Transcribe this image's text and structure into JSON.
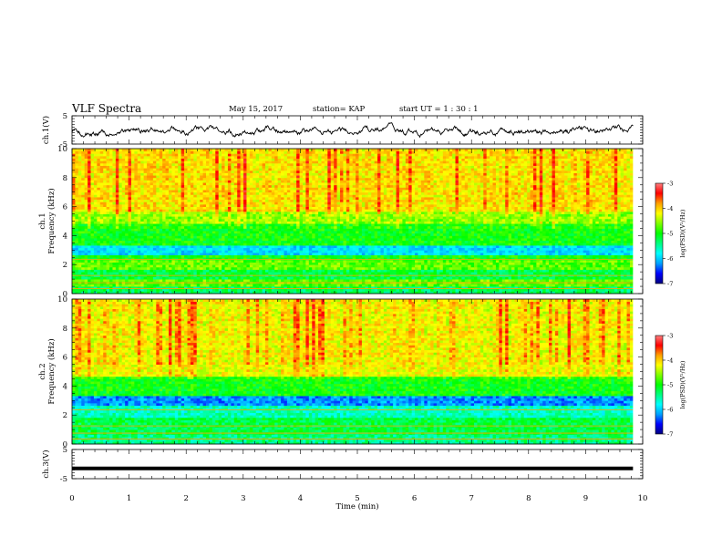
{
  "header": {
    "title": "VLF Spectra",
    "date": "May 15, 2017",
    "station": "station= KAP",
    "start": "start  UT =   1 : 30 : 1"
  },
  "chart_data": [
    {
      "type": "line",
      "panel": "waveform-ch1",
      "ylabel": "ch.1(V)",
      "ylim": [
        -5,
        5
      ],
      "yticks": [
        -5,
        5
      ],
      "x_range_min": [
        0,
        9.83
      ],
      "series_color": "#000000",
      "description_of_signal": "noisy waveform fluctuating roughly between -3 and 2 V around about -0.5 V"
    },
    {
      "type": "heatmap",
      "panel": "spectrogram-ch1",
      "ylabel": "ch.1\nFrequency (kHz)",
      "ylabel_lines": [
        "ch.1",
        "Frequency (kHz)"
      ],
      "ylim": [
        0,
        10
      ],
      "yticks": [
        0,
        2,
        4,
        6,
        8,
        10
      ],
      "x_range_min": [
        0,
        9.83
      ],
      "bands": [
        {
          "from": 0,
          "to": 0.5,
          "level": -5.3
        },
        {
          "from": 0.5,
          "to": 1.0,
          "level": -4.7
        },
        {
          "from": 1.0,
          "to": 1.6,
          "level": -5.2
        },
        {
          "from": 1.6,
          "to": 2.3,
          "level": -4.7
        },
        {
          "from": 2.3,
          "to": 2.7,
          "level": -5.0
        },
        {
          "from": 2.7,
          "to": 3.4,
          "level": -5.9
        },
        {
          "from": 3.4,
          "to": 4.8,
          "level": -5.0
        },
        {
          "from": 4.8,
          "to": 5.6,
          "level": -4.6
        },
        {
          "from": 5.6,
          "to": 10,
          "level": -4.2
        }
      ],
      "colorbar": {
        "label": "log(PSD)(V²/Hz)",
        "range": [
          -7,
          -3
        ],
        "ticks": [
          -3,
          -4,
          -5,
          -6,
          -7
        ]
      }
    },
    {
      "type": "heatmap",
      "panel": "spectrogram-ch2",
      "ylabel_lines": [
        "ch.2",
        "Frequency (kHz)"
      ],
      "ylim": [
        0,
        10
      ],
      "yticks": [
        0,
        2,
        4,
        6,
        8,
        10
      ],
      "x_range_min": [
        0,
        9.83
      ],
      "bands": [
        {
          "from": 0,
          "to": 0.6,
          "level": -5.4
        },
        {
          "from": 0.6,
          "to": 1.8,
          "level": -5.2
        },
        {
          "from": 1.8,
          "to": 2.6,
          "level": -5.6
        },
        {
          "from": 2.6,
          "to": 3.3,
          "level": -6.2
        },
        {
          "from": 3.3,
          "to": 4.6,
          "level": -5.0
        },
        {
          "from": 4.6,
          "to": 10,
          "level": -4.3
        }
      ],
      "colorbar": {
        "label": "log(PSD)(V²/Hz)",
        "range": [
          -7,
          -3
        ],
        "ticks": [
          -3,
          -4,
          -5,
          -6,
          -7
        ]
      }
    },
    {
      "type": "line",
      "panel": "waveform-ch3",
      "ylabel": "ch.3(V)",
      "ylim": [
        -5,
        5
      ],
      "yticks": [
        -5,
        5
      ],
      "x_range_min": [
        0,
        9.83
      ],
      "level_v": -1.5,
      "series_color": "#000000"
    }
  ],
  "xaxis": {
    "label": "Time  (min)",
    "ticks": [
      0,
      1,
      2,
      3,
      4,
      5,
      6,
      7,
      8,
      9,
      10
    ],
    "range": [
      0,
      10
    ]
  },
  "colors": {
    "colormap": [
      "#000080",
      "#0000ff",
      "#00a0ff",
      "#00ffff",
      "#00ff80",
      "#00ff00",
      "#80ff00",
      "#ffff00",
      "#ffa000",
      "#ff0000",
      "#ff8080",
      "#ffffff"
    ]
  }
}
